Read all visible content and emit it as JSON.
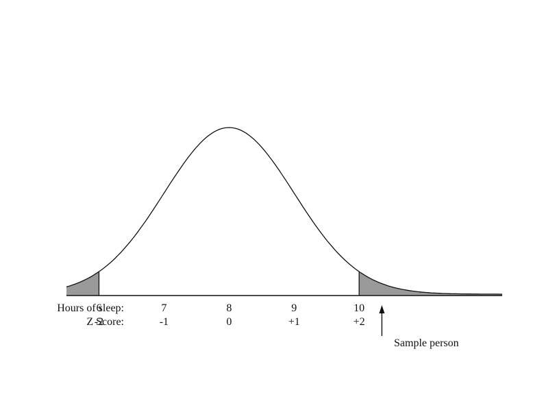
{
  "chart_data": {
    "type": "area",
    "distribution": "normal",
    "mean": 8,
    "sd": 1,
    "xlim": [
      5.5,
      12.2
    ],
    "shaded_regions": [
      {
        "from": 5.5,
        "to": 6
      },
      {
        "from": 10,
        "to": 12.2
      }
    ],
    "axis_rows": [
      {
        "label": "Hours of sleep:",
        "ticks": [
          "6",
          "7",
          "8",
          "9",
          "10"
        ]
      },
      {
        "label": "Z Score:",
        "ticks": [
          "-2",
          "-1",
          "0",
          "+1",
          "+2"
        ]
      }
    ],
    "tick_positions_hours": [
      6,
      7,
      8,
      9,
      10
    ],
    "annotation": {
      "text": "Sample person",
      "x": 10.35
    }
  },
  "colors": {
    "curve": "#111111",
    "shade": "#9a9a9a"
  }
}
